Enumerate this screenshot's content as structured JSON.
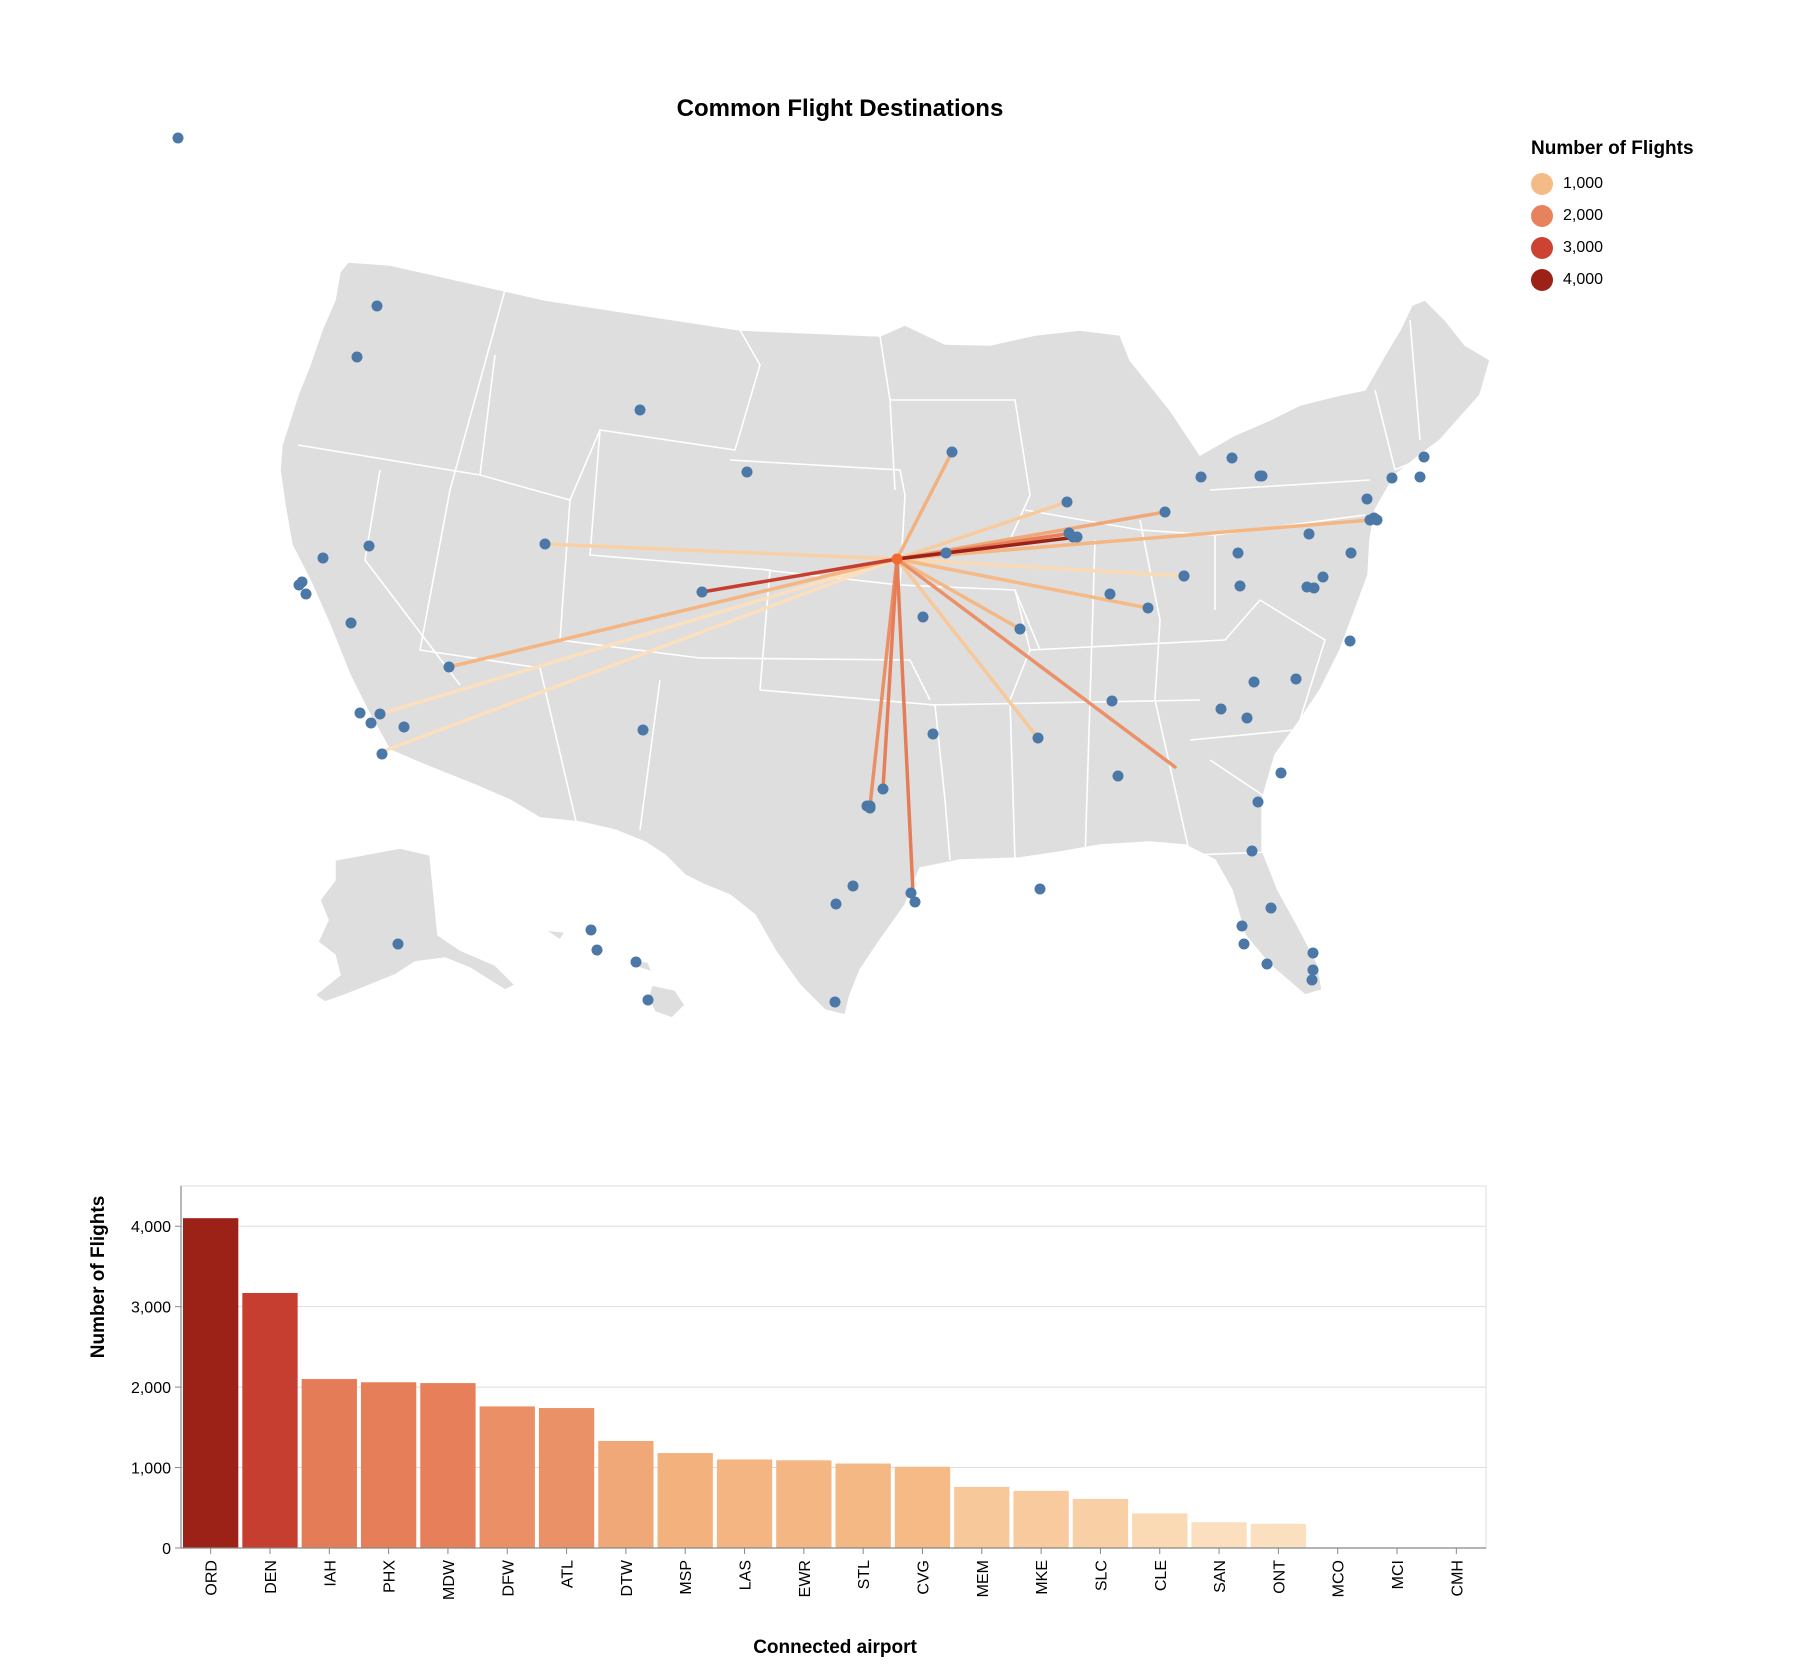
{
  "chart_data": [
    {
      "type": "map",
      "title": "Common Flight Destinations",
      "origin": "MCI",
      "legend": {
        "title": "Number of Flights",
        "placement": "top-right",
        "items": [
          {
            "label": "1,000",
            "color": "#f5bb86"
          },
          {
            "label": "2,000",
            "color": "#e8825c"
          },
          {
            "label": "3,000",
            "color": "#cc4333"
          },
          {
            "label": "4,000",
            "color": "#9c2117"
          }
        ]
      },
      "colors": {
        "land": "#dedede",
        "border": "#ffffff",
        "airport": "#4c78a8",
        "origin": "#f26a2e"
      }
    },
    {
      "type": "bar",
      "categories": [
        "ORD",
        "DEN",
        "IAH",
        "PHX",
        "MDW",
        "DFW",
        "ATL",
        "DTW",
        "MSP",
        "LAS",
        "EWR",
        "STL",
        "CVG",
        "MEM",
        "MKE",
        "SLC",
        "CLE",
        "SAN",
        "ONT",
        "MCO",
        "MCI",
        "CMH"
      ],
      "values": [
        4100,
        3170,
        2100,
        2060,
        2050,
        1760,
        1740,
        1330,
        1180,
        1100,
        1090,
        1050,
        1010,
        760,
        710,
        610,
        430,
        320,
        300,
        0,
        0,
        0
      ],
      "xlabel": "Connected airport",
      "ylabel": "Number of Flights",
      "ylim": [
        0,
        4500
      ],
      "yticks": [
        "0",
        "1,000",
        "2,000",
        "3,000",
        "4,000"
      ],
      "grid": true
    }
  ]
}
